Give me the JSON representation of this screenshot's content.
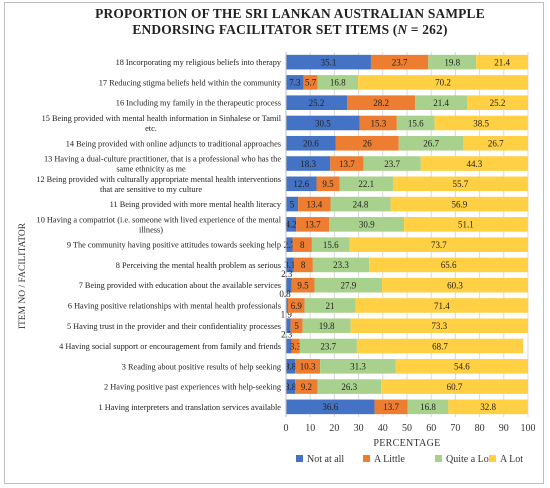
{
  "chart_data": {
    "type": "bar",
    "orientation": "horizontal",
    "stacked": true,
    "title_line1": "PROPORTION OF THE SRI LANKAN AUSTRALIAN SAMPLE",
    "title_line2": "ENDORSING FACILITATOR SET ITEMS (N = 262)",
    "xlabel": "PERCENTAGE",
    "ylabel": "ITEM NO / FACILITATOR",
    "xlim": [
      0,
      100
    ],
    "xticks": [
      "0",
      "10",
      "20",
      "30",
      "40",
      "50",
      "60",
      "70",
      "80",
      "90",
      "100"
    ],
    "grid": true,
    "legend_position": "bottom",
    "categories": [
      {
        "lines": [
          "18 Incorporating my religious beliefs into therapy"
        ]
      },
      {
        "lines": [
          "17 Reducing stigma beliefs held within the community"
        ]
      },
      {
        "lines": [
          "16 Including my family in the therapeutic process"
        ]
      },
      {
        "lines": [
          "15 Being provided with mental health information in Sinhalese or Tamil",
          "etc."
        ]
      },
      {
        "lines": [
          "14 Being provided with online adjuncts to traditional approaches"
        ]
      },
      {
        "lines": [
          "13 Having a dual-culture practitioner, that is a professional who has the",
          "same ethnicity as me"
        ]
      },
      {
        "lines": [
          "12 Being provided with culturally appropriate mental health interventions",
          "that are sensitive to my culture"
        ]
      },
      {
        "lines": [
          "11 Being provided with more mental health literacy"
        ]
      },
      {
        "lines": [
          "10 Having a compatriot (i.e. someone with lived experience of the mental",
          "illness)"
        ]
      },
      {
        "lines": [
          "9 The community having positive attitudes towards seeking help"
        ]
      },
      {
        "lines": [
          "8 Perceiving the mental health problem as serious"
        ]
      },
      {
        "lines": [
          "7 Being provided with education about the available services"
        ]
      },
      {
        "lines": [
          "6 Having positive relationships with mental health professionals"
        ]
      },
      {
        "lines": [
          "5 Having trust in the provider and their confidentiality processes"
        ]
      },
      {
        "lines": [
          "4 Having social support or encouragement from family and friends"
        ]
      },
      {
        "lines": [
          "3 Reading about positive results of help seeking"
        ]
      },
      {
        "lines": [
          "2 Having positive past experiences with help-seeking"
        ]
      },
      {
        "lines": [
          "1 Having interpreters and translation services available"
        ]
      }
    ],
    "series": [
      {
        "name": "Not at all",
        "color": "#4472C4",
        "values": [
          35.1,
          7.3,
          25.2,
          30.5,
          20.6,
          18.3,
          12.6,
          5,
          4.2,
          2.7,
          3.1,
          2.3,
          0.8,
          1.9,
          2.3,
          3.8,
          3.8,
          36.6
        ],
        "labels": [
          "35.1",
          "7.3",
          "25.2",
          "30.5",
          "20.6",
          "18.3",
          "12.6",
          "5",
          "4.2",
          "2.7",
          "3.1",
          "2.3",
          "0.8",
          "1.9",
          "2.3",
          "3.8",
          "3.8",
          "36.6"
        ]
      },
      {
        "name": "A Little",
        "color": "#ED7D31",
        "values": [
          23.7,
          5.7,
          28.2,
          15.3,
          26,
          13.7,
          9.5,
          13.4,
          13.7,
          8,
          8,
          9.5,
          6.9,
          5,
          3.3,
          10.3,
          9.2,
          13.7
        ],
        "labels": [
          "23.7",
          "5.7",
          "28.2",
          "15.3",
          "26",
          "13.7",
          "9.5",
          "13.4",
          "13.7",
          "8",
          "8",
          "9.5",
          "6.9",
          "5",
          "3.3",
          "10.3",
          "9.2",
          "13.7"
        ]
      },
      {
        "name": "Quite a Lot",
        "color": "#A9D18E",
        "values": [
          19.8,
          16.8,
          21.4,
          15.6,
          26.7,
          23.7,
          22.1,
          24.8,
          30.9,
          15.6,
          23.3,
          27.9,
          21,
          19.8,
          23.7,
          31.3,
          26.3,
          16.8
        ],
        "labels": [
          "19.8",
          "16.8",
          "21.4",
          "15.6",
          "26.7",
          "23.7",
          "22.1",
          "24.8",
          "30.9",
          "15.6",
          "23.3",
          "27.9",
          "21",
          "19.8",
          "23.7",
          "31.3",
          "26.3",
          "16.8"
        ]
      },
      {
        "name": "A Lot",
        "color": "#FFD043",
        "values": [
          21.4,
          70.2,
          25.2,
          38.5,
          26.7,
          44.3,
          55.7,
          56.9,
          51.1,
          73.7,
          65.6,
          60.3,
          71.4,
          73.3,
          68.7,
          54.6,
          60.7,
          32.8
        ],
        "labels": [
          "21.4",
          "70.2",
          "25.2",
          "38.5",
          "26.7",
          "44.3",
          "55.7",
          "56.9",
          "51.1",
          "73.7",
          "65.6",
          "60.3",
          "71.4",
          "73.3",
          "68.7",
          "54.6",
          "60.7",
          "32.8"
        ]
      }
    ]
  }
}
